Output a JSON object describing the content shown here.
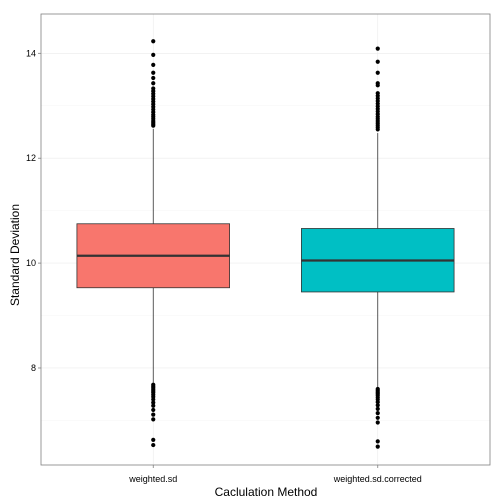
{
  "chart_data": {
    "type": "box",
    "title": "",
    "xlabel": "Caclulation Method",
    "ylabel": "Standard Deviation",
    "ylim": [
      6.15,
      14.75
    ],
    "y_ticks": [
      8,
      10,
      12,
      14
    ],
    "y_tick_labels": [
      "8",
      "10",
      "12",
      "14"
    ],
    "grid": true,
    "legend": "none",
    "categories": [
      "weighted.sd",
      "weighted.sd.corrected"
    ],
    "series": [
      {
        "category": "weighted.sd",
        "fill": "#F8766D",
        "q1": 9.53,
        "median": 10.14,
        "q3": 10.75,
        "whisker_low": 7.72,
        "whisker_high": 12.56,
        "outliers": [
          14.23,
          13.97,
          13.78,
          13.63,
          13.53,
          13.43,
          13.33,
          13.28,
          13.23,
          13.18,
          13.13,
          13.08,
          13.03,
          12.98,
          12.93,
          12.88,
          12.83,
          12.79,
          12.75,
          12.71,
          12.68,
          12.65,
          12.62,
          7.68,
          7.65,
          7.62,
          7.59,
          7.56,
          7.53,
          7.49,
          7.45,
          7.4,
          7.34,
          7.28,
          7.2,
          7.11,
          7.02,
          6.63,
          6.53
        ]
      },
      {
        "category": "weighted.sd.corrected",
        "fill": "#00BFC4",
        "q1": 9.45,
        "median": 10.05,
        "q3": 10.66,
        "whisker_low": 7.63,
        "whisker_high": 12.48,
        "outliers": [
          14.09,
          13.84,
          13.63,
          13.43,
          13.39,
          13.24,
          13.19,
          13.14,
          13.09,
          13.04,
          12.99,
          12.94,
          12.89,
          12.84,
          12.79,
          12.75,
          12.71,
          12.67,
          12.63,
          12.59,
          12.55,
          7.6,
          7.57,
          7.54,
          7.51,
          7.48,
          7.44,
          7.4,
          7.35,
          7.29,
          7.22,
          7.14,
          7.05,
          6.96,
          6.6,
          6.5
        ]
      }
    ]
  },
  "colors": {
    "panel_border": "#7F7F7F",
    "grid_major": "#EBEBEB",
    "grid_minor": "#F5F5F5",
    "box_stroke": "#333333",
    "whisker": "#333333",
    "outlier": "#000000"
  }
}
